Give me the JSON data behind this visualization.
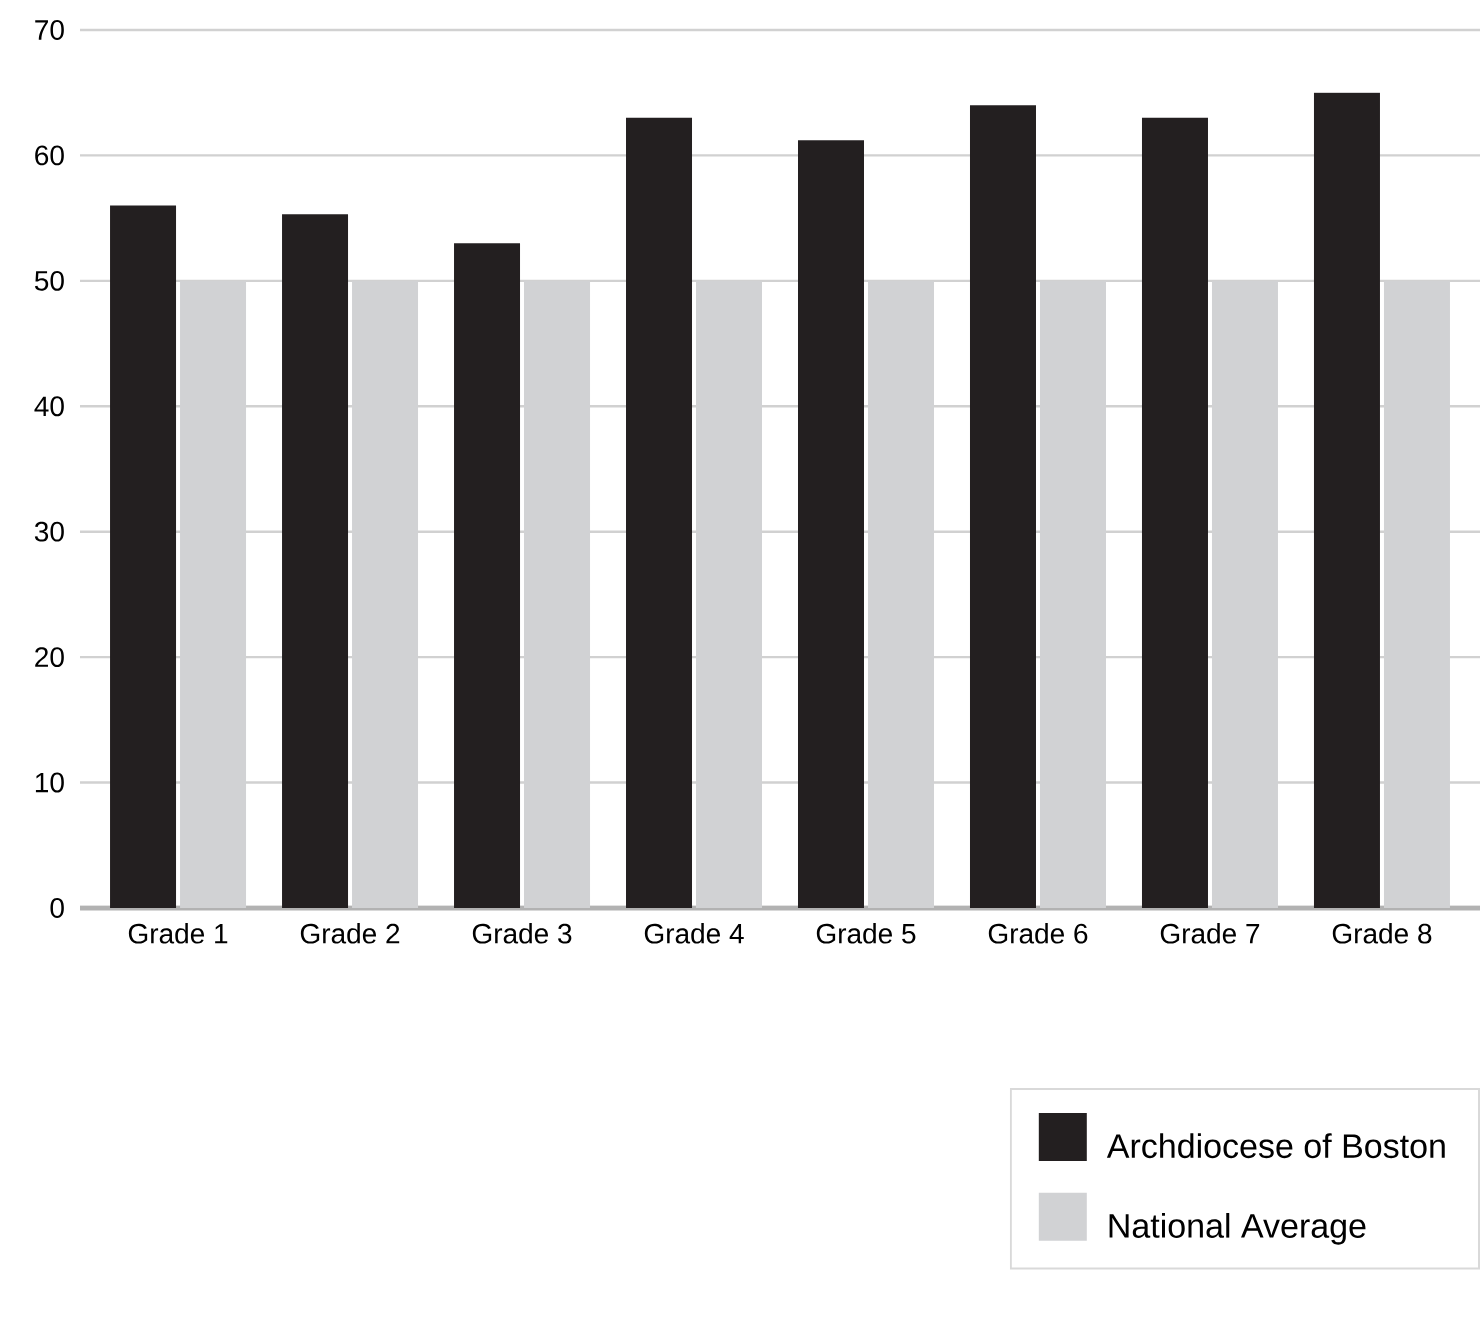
{
  "chart_data": {
    "type": "bar",
    "categories": [
      "Grade 1",
      "Grade 2",
      "Grade 3",
      "Grade 4",
      "Grade 5",
      "Grade 6",
      "Grade 7",
      "Grade 8"
    ],
    "series": [
      {
        "name": "Archdiocese of Boston",
        "color": "#231f20",
        "values": [
          56,
          55.3,
          53,
          63,
          61.2,
          64,
          63,
          65
        ]
      },
      {
        "name": "National Average",
        "color": "#d1d2d4",
        "values": [
          50,
          50,
          50,
          50,
          50,
          50,
          50,
          50
        ]
      }
    ],
    "ylim": [
      0,
      70
    ],
    "yticks": [
      0,
      10,
      20,
      30,
      40,
      50,
      60,
      70
    ],
    "grid": "y",
    "legend": "bottom right"
  }
}
